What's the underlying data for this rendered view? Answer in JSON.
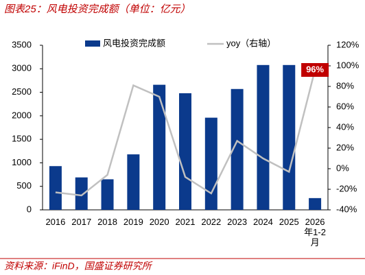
{
  "title": "图表25：风电投资完成额（单位：亿元）",
  "source": "资料来源：iFinD，国盛证券研究所",
  "chart_data": {
    "type": "bar-line",
    "categories": [
      "2016",
      "2017",
      "2018",
      "2019",
      "2020",
      "2021",
      "2022",
      "2023",
      "2024",
      "2025",
      "2026年1-2月"
    ],
    "series": [
      {
        "name": "风电投资完成额",
        "color": "#0b3a8c",
        "values": [
          930,
          690,
          650,
          1180,
          2660,
          2480,
          1960,
          2570,
          3080,
          3080,
          250
        ]
      },
      {
        "name": "yoy（右轴）",
        "color": "#c0c0c0",
        "axis": "y2",
        "values": [
          -23,
          -26,
          -6,
          81,
          70,
          -8,
          -24,
          27,
          10,
          -3,
          96
        ],
        "value_labels": [
          null,
          null,
          null,
          null,
          null,
          null,
          null,
          null,
          null,
          null,
          "96%"
        ]
      }
    ],
    "ylim": [
      0,
      3500
    ],
    "yticks": [
      0,
      500,
      1000,
      1500,
      2000,
      2500,
      3000,
      3500
    ],
    "y2lim": [
      -40,
      120
    ],
    "y2ticks": [
      {
        "value": -40,
        "label": "-40%"
      },
      {
        "value": -20,
        "label": "-20%"
      },
      {
        "value": 0,
        "label": "0%"
      },
      {
        "value": 20,
        "label": "20%"
      },
      {
        "value": 40,
        "label": "40%"
      },
      {
        "value": 60,
        "label": "60%"
      },
      {
        "value": 80,
        "label": "80%"
      },
      {
        "value": 100,
        "label": "100%"
      },
      {
        "value": 120,
        "label": "120%"
      }
    ]
  }
}
